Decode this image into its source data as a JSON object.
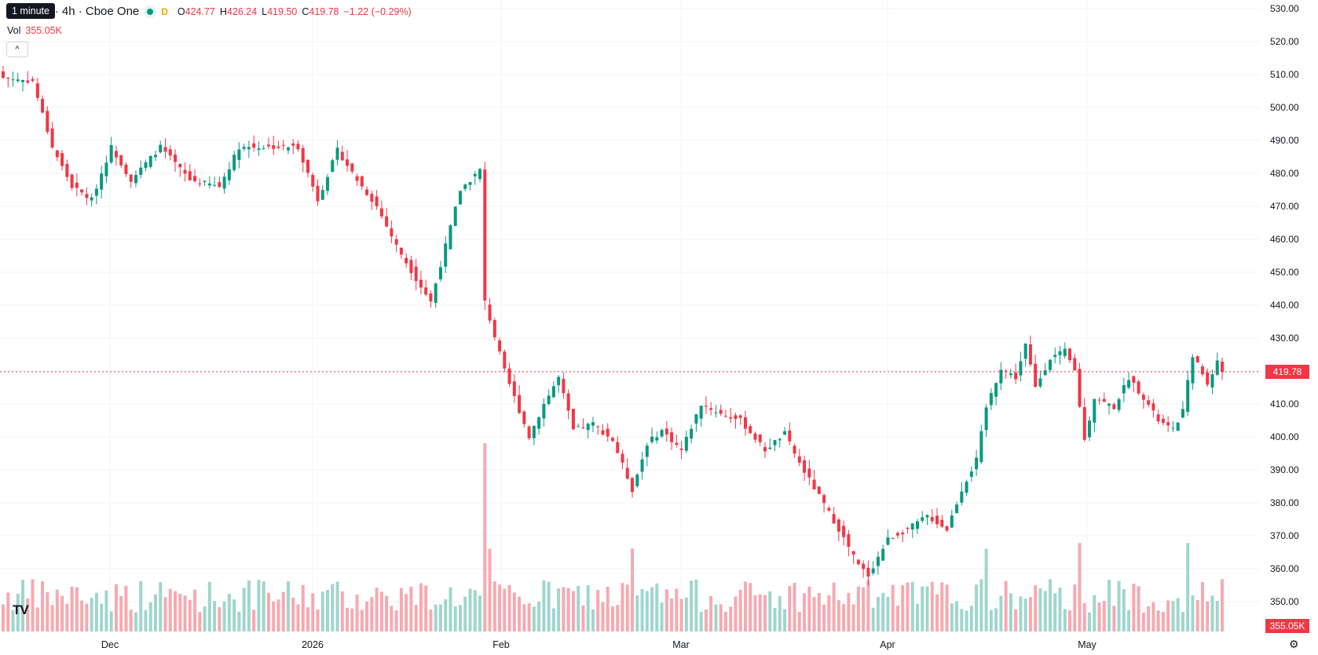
{
  "legend": {
    "title": "oft Corp. · 4h · Cboe One",
    "interval_badge": "D",
    "open_label": "O",
    "open": "424.77",
    "high_label": "H",
    "high": "426.24",
    "low_label": "L",
    "low": "419.50",
    "close_label": "C",
    "close": "419.78",
    "change": "−1.22 (−0.29%)",
    "vol_label": "Vol",
    "vol_value": "355.05K",
    "collapse_glyph": "^"
  },
  "tooltip": {
    "text": "1 minute"
  },
  "price_axis": {
    "ticks": [
      "530.00",
      "520.00",
      "510.00",
      "500.00",
      "490.00",
      "480.00",
      "470.00",
      "460.00",
      "450.00",
      "440.00",
      "430.00",
      "420.00",
      "410.00",
      "400.00",
      "390.00",
      "380.00",
      "370.00",
      "360.00",
      "350.00"
    ],
    "last_price_label": "419.78",
    "volume_label": "355.05K"
  },
  "time_axis": {
    "labels": [
      "Dec",
      "2026",
      "Feb",
      "Mar",
      "Apr",
      "May"
    ]
  },
  "colors": {
    "up": "#089981",
    "down": "#f23645",
    "up_volume": "#9fd6cc",
    "down_volume": "#f7a9b0",
    "grid": "#f0f3fa",
    "price_line": "#f23645"
  },
  "icons": {
    "logo": "tradingview-logo-icon",
    "settings": "gear-icon"
  },
  "chart_data": {
    "type": "candlestick",
    "title": "oft Corp. · 4h · Cboe One",
    "ylim": [
      350,
      530
    ],
    "last_price": 419.78,
    "waypoints": [
      {
        "i": 0,
        "p": 509
      },
      {
        "i": 6,
        "p": 508
      },
      {
        "i": 8,
        "p": 498
      },
      {
        "i": 10,
        "p": 488
      },
      {
        "i": 14,
        "p": 476
      },
      {
        "i": 18,
        "p": 472
      },
      {
        "i": 22,
        "p": 488
      },
      {
        "i": 26,
        "p": 478
      },
      {
        "i": 32,
        "p": 488
      },
      {
        "i": 38,
        "p": 478
      },
      {
        "i": 44,
        "p": 476
      },
      {
        "i": 48,
        "p": 488
      },
      {
        "i": 60,
        "p": 488
      },
      {
        "i": 64,
        "p": 472
      },
      {
        "i": 68,
        "p": 487
      },
      {
        "i": 72,
        "p": 478
      },
      {
        "i": 76,
        "p": 470
      },
      {
        "i": 80,
        "p": 458
      },
      {
        "i": 84,
        "p": 448
      },
      {
        "i": 87,
        "p": 441
      },
      {
        "i": 90,
        "p": 458
      },
      {
        "i": 93,
        "p": 475
      },
      {
        "i": 97,
        "p": 481
      },
      {
        "i": 98,
        "p": 441
      },
      {
        "i": 102,
        "p": 420
      },
      {
        "i": 104,
        "p": 412
      },
      {
        "i": 107,
        "p": 400
      },
      {
        "i": 110,
        "p": 410
      },
      {
        "i": 113,
        "p": 418
      },
      {
        "i": 116,
        "p": 402
      },
      {
        "i": 120,
        "p": 404
      },
      {
        "i": 124,
        "p": 399
      },
      {
        "i": 128,
        "p": 384
      },
      {
        "i": 131,
        "p": 398
      },
      {
        "i": 134,
        "p": 402
      },
      {
        "i": 138,
        "p": 396
      },
      {
        "i": 142,
        "p": 410
      },
      {
        "i": 146,
        "p": 407
      },
      {
        "i": 150,
        "p": 405
      },
      {
        "i": 155,
        "p": 396
      },
      {
        "i": 159,
        "p": 401
      },
      {
        "i": 162,
        "p": 392
      },
      {
        "i": 166,
        "p": 382
      },
      {
        "i": 170,
        "p": 372
      },
      {
        "i": 174,
        "p": 361
      },
      {
        "i": 176,
        "p": 358
      },
      {
        "i": 180,
        "p": 369
      },
      {
        "i": 184,
        "p": 372
      },
      {
        "i": 188,
        "p": 376
      },
      {
        "i": 192,
        "p": 372
      },
      {
        "i": 195,
        "p": 384
      },
      {
        "i": 198,
        "p": 393
      },
      {
        "i": 200,
        "p": 409
      },
      {
        "i": 203,
        "p": 421
      },
      {
        "i": 206,
        "p": 418
      },
      {
        "i": 208,
        "p": 428
      },
      {
        "i": 210,
        "p": 415
      },
      {
        "i": 213,
        "p": 424
      },
      {
        "i": 216,
        "p": 426
      },
      {
        "i": 218,
        "p": 420
      },
      {
        "i": 220,
        "p": 399
      },
      {
        "i": 222,
        "p": 412
      },
      {
        "i": 226,
        "p": 409
      },
      {
        "i": 229,
        "p": 418
      },
      {
        "i": 232,
        "p": 412
      },
      {
        "i": 235,
        "p": 405
      },
      {
        "i": 238,
        "p": 402
      },
      {
        "i": 240,
        "p": 408
      },
      {
        "i": 242,
        "p": 425
      },
      {
        "i": 245,
        "p": 416
      },
      {
        "i": 247,
        "p": 423
      },
      {
        "i": 248,
        "p": 419.78
      }
    ],
    "volume_scale": "relative",
    "volume_spikes": {
      "98": 1.0,
      "99": 0.44,
      "128": 0.44,
      "200": 0.44,
      "219": 0.47,
      "241": 0.47
    }
  }
}
